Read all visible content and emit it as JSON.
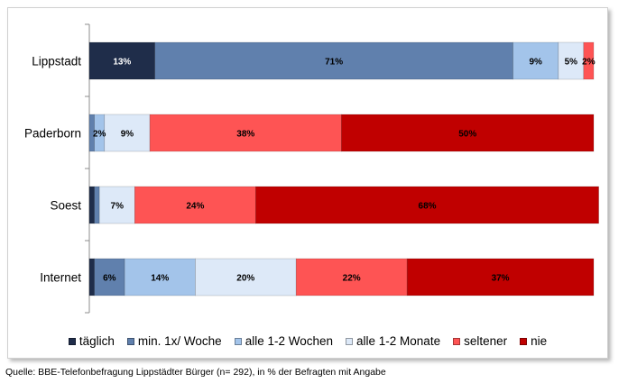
{
  "chart_data": {
    "type": "bar",
    "orientation": "horizontal",
    "stacked": true,
    "categories": [
      "Lippstadt",
      "Paderborn",
      "Soest",
      "Internet"
    ],
    "series": [
      {
        "name": "täglich",
        "color": "#1f2d4a",
        "values": [
          13,
          0,
          1,
          1
        ]
      },
      {
        "name": "min. 1x/ Woche",
        "color": "#6080ad",
        "values": [
          71,
          1,
          1,
          6
        ]
      },
      {
        "name": "alle 1-2 Wochen",
        "color": "#a3c4ea",
        "values": [
          9,
          2,
          0,
          14
        ]
      },
      {
        "name": "alle 1-2 Monate",
        "color": "#dde9f8",
        "values": [
          5,
          9,
          7,
          20
        ]
      },
      {
        "name": "seltener",
        "color": "#fe5454",
        "values": [
          2,
          38,
          24,
          22
        ]
      },
      {
        "name": "nie",
        "color": "#c00000",
        "values": [
          0,
          50,
          68,
          37
        ]
      }
    ],
    "data_labels": [
      [
        "13%",
        "71%",
        "9%",
        "5%",
        "2%",
        ""
      ],
      [
        "",
        "",
        "2%",
        "9%",
        "38%",
        "50%"
      ],
      [
        "",
        "",
        "",
        "7%",
        "24%",
        "68%"
      ],
      [
        "",
        "6%",
        "14%",
        "20%",
        "22%",
        "37%"
      ]
    ],
    "xlim": [
      0,
      100
    ],
    "legend_position": "bottom",
    "grid": false
  },
  "source_note": "Quelle: BBE-Telefonbefragung Lippstädter Bürger (n= 292), in % der Befragten mit Angabe"
}
